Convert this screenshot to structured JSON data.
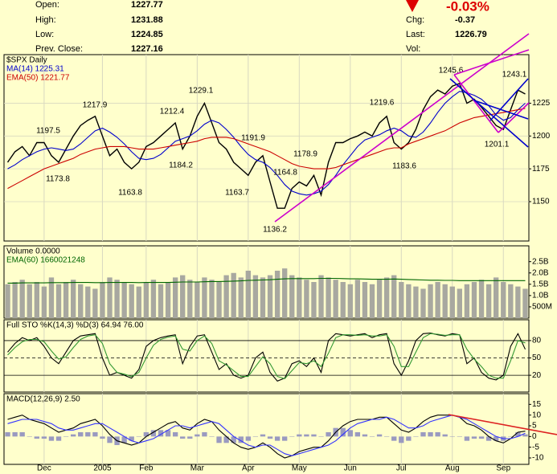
{
  "header": {
    "open_label": "Open:",
    "open": "1227.77",
    "high_label": "High:",
    "high": "1231.88",
    "low_label": "Low:",
    "low": "1224.85",
    "prev_close_label": "Prev. Close:",
    "prev_close": "1227.16",
    "change_pct": "-0.03%",
    "chg_label": "Chg:",
    "chg": "-0.37",
    "last_label": "Last:",
    "last": "1226.79",
    "vol_label": "Vol:"
  },
  "chart_data": [
    {
      "type": "line",
      "title": "$SPX Daily",
      "ylim": [
        1120,
        1262
      ],
      "yticks": [
        1150,
        1175,
        1200,
        1225
      ],
      "grid": true,
      "series": [
        {
          "color": "#000000",
          "values": [
            1180,
            1188,
            1192,
            1185,
            1195,
            1195,
            1185,
            1180,
            1190,
            1200,
            1208,
            1212,
            1215,
            1200,
            1185,
            1190,
            1180,
            1175,
            1180,
            1192,
            1195,
            1200,
            1205,
            1210,
            1190,
            1200,
            1215,
            1225,
            1210,
            1195,
            1190,
            1180,
            1175,
            1170,
            1180,
            1185,
            1165,
            1145,
            1145,
            1160,
            1165,
            1162,
            1170,
            1155,
            1180,
            1195,
            1195,
            1198,
            1200,
            1203,
            1200,
            1210,
            1215,
            1195,
            1190,
            1195,
            1205,
            1220,
            1230,
            1235,
            1232,
            1238,
            1240,
            1225,
            1228,
            1222,
            1215,
            1208,
            1205,
            1220,
            1235,
            1232
          ]
        },
        {
          "name": "MA(14) 1225.31",
          "color": "#0000cc",
          "values": [
            1175,
            1178,
            1182,
            1185,
            1188,
            1190,
            1191,
            1190,
            1189,
            1190,
            1194,
            1199,
            1204,
            1206,
            1203,
            1199,
            1194,
            1188,
            1183,
            1182,
            1183,
            1186,
            1191,
            1196,
            1198,
            1200,
            1204,
            1209,
            1212,
            1210,
            1205,
            1199,
            1192,
            1186,
            1182,
            1180,
            1176,
            1170,
            1163,
            1158,
            1156,
            1155,
            1156,
            1158,
            1163,
            1170,
            1178,
            1185,
            1192,
            1197,
            1199,
            1201,
            1204,
            1206,
            1204,
            1200,
            1199,
            1203,
            1210,
            1218,
            1225,
            1230,
            1234,
            1233,
            1231,
            1228,
            1223,
            1216,
            1212,
            1214,
            1220,
            1225
          ]
        },
        {
          "name": "EMA(50) 1221.77",
          "color": "#cc0000",
          "values": [
            1160,
            1163,
            1166,
            1169,
            1172,
            1175,
            1177,
            1179,
            1181,
            1183,
            1186,
            1188,
            1190,
            1191,
            1192,
            1192,
            1192,
            1191,
            1190,
            1190,
            1190,
            1191,
            1192,
            1193,
            1194,
            1195,
            1196,
            1198,
            1199,
            1199,
            1199,
            1198,
            1196,
            1194,
            1192,
            1190,
            1188,
            1185,
            1182,
            1179,
            1177,
            1176,
            1175,
            1175,
            1175,
            1176,
            1178,
            1180,
            1182,
            1184,
            1186,
            1188,
            1190,
            1191,
            1191,
            1194,
            1196,
            1198,
            1200,
            1202,
            1204,
            1207,
            1210,
            1212,
            1214,
            1215,
            1216,
            1217,
            1218,
            1219,
            1220,
            1221
          ]
        }
      ],
      "annotations": [
        "1245.6",
        "1243.1",
        "1217.9",
        "1229.1",
        "1212.4",
        "1197.5",
        "1173.8",
        "1163.8",
        "1184.2",
        "1191.9",
        "1178.9",
        "1164.8",
        "1163.7",
        "1136.2",
        "1219.6",
        "1183.6",
        "1201.1"
      ]
    },
    {
      "type": "bar",
      "title": "Volume 0.0000",
      "ylim": [
        0,
        3200000000.0
      ],
      "yticks": [
        {
          "value": 2500000000.0,
          "label": "2.5B"
        },
        {
          "value": 2000000000.0,
          "label": "2.0B"
        },
        {
          "value": 1500000000.0,
          "label": "1.5B"
        },
        {
          "value": 1000000000.0,
          "label": "1.0B"
        },
        {
          "value": 500000000.0,
          "label": "500M"
        }
      ],
      "series": [
        {
          "color": "#a8a8a0",
          "values": [
            1500000000.0,
            1600000000.0,
            1700000000.0,
            1500000000.0,
            1600000000.0,
            1400000000.0,
            1800000000.0,
            1500000000.0,
            1600000000.0,
            1700000000.0,
            1500000000.0,
            1400000000.0,
            1300000000.0,
            1600000000.0,
            1800000000.0,
            1700000000.0,
            1600000000.0,
            1500000000.0,
            1400000000.0,
            1600000000.0,
            1700000000.0,
            1500000000.0,
            1600000000.0,
            1800000000.0,
            1900000000.0,
            1700000000.0,
            1600000000.0,
            1800000000.0,
            1700000000.0,
            1600000000.0,
            1900000000.0,
            2000000000.0,
            1800000000.0,
            2100000000.0,
            1900000000.0,
            1800000000.0,
            1900000000.0,
            2100000000.0,
            2200000000.0,
            1900000000.0,
            1800000000.0,
            1700000000.0,
            1600000000.0,
            1900000000.0,
            1800000000.0,
            1700000000.0,
            1600000000.0,
            1500000000.0,
            1700000000.0,
            1600000000.0,
            1500000000.0,
            1700000000.0,
            1800000000.0,
            1900000000.0,
            1600000000.0,
            1500000000.0,
            1400000000.0,
            1300000000.0,
            1500000000.0,
            1600000000.0,
            1500000000.0,
            1400000000.0,
            1300000000.0,
            1500000000.0,
            1600000000.0,
            1700000000.0,
            1500000000.0,
            1800000000.0,
            1600000000.0,
            1500000000.0,
            1400000000.0,
            1300000000.0
          ]
        },
        {
          "name": "EMA(60) 1660021248",
          "type": "line",
          "color": "#006600",
          "values": [
            1550000000.0,
            1550000000.0,
            1560000000.0,
            1560000000.0,
            1560000000.0,
            1560000000.0,
            1570000000.0,
            1570000000.0,
            1570000000.0,
            1580000000.0,
            1580000000.0,
            1580000000.0,
            1570000000.0,
            1570000000.0,
            1580000000.0,
            1580000000.0,
            1580000000.0,
            1580000000.0,
            1570000000.0,
            1580000000.0,
            1580000000.0,
            1580000000.0,
            1580000000.0,
            1590000000.0,
            1600000000.0,
            1600000000.0,
            1600000000.0,
            1610000000.0,
            1620000000.0,
            1620000000.0,
            1630000000.0,
            1640000000.0,
            1650000000.0,
            1670000000.0,
            1680000000.0,
            1690000000.0,
            1700000000.0,
            1720000000.0,
            1740000000.0,
            1750000000.0,
            1750000000.0,
            1750000000.0,
            1750000000.0,
            1760000000.0,
            1760000000.0,
            1760000000.0,
            1750000000.0,
            1740000000.0,
            1740000000.0,
            1730000000.0,
            1720000000.0,
            1720000000.0,
            1720000000.0,
            1730000000.0,
            1720000000.0,
            1710000000.0,
            1700000000.0,
            1690000000.0,
            1680000000.0,
            1680000000.0,
            1670000000.0,
            1670000000.0,
            1660000000.0,
            1660000000.0,
            1660000000.0,
            1660000000.0,
            1660000000.0,
            1660000000.0,
            1660000000.0,
            1660000000.0,
            1660000000.0,
            1660000000.0
          ]
        }
      ]
    },
    {
      "type": "line",
      "title": "Full STO %K(14,3) %D(3) 64.94 76.00",
      "ylim": [
        -9,
        116
      ],
      "yticks": [
        80,
        50,
        20
      ],
      "grid": true,
      "series": [
        {
          "color": "#000000",
          "values": [
            60,
            75,
            85,
            80,
            85,
            70,
            50,
            40,
            60,
            80,
            88,
            90,
            92,
            50,
            20,
            25,
            20,
            15,
            30,
            70,
            80,
            85,
            88,
            90,
            40,
            70,
            88,
            90,
            60,
            30,
            40,
            20,
            15,
            20,
            50,
            60,
            25,
            10,
            15,
            40,
            45,
            35,
            50,
            25,
            80,
            92,
            90,
            88,
            90,
            92,
            85,
            90,
            92,
            40,
            20,
            45,
            80,
            92,
            93,
            90,
            88,
            92,
            90,
            40,
            50,
            25,
            15,
            12,
            20,
            70,
            92,
            64.94
          ]
        },
        {
          "color": "#339933",
          "values": [
            55,
            68,
            78,
            82,
            82,
            78,
            62,
            48,
            52,
            68,
            82,
            88,
            90,
            75,
            40,
            25,
            22,
            18,
            25,
            50,
            72,
            82,
            86,
            88,
            65,
            62,
            80,
            88,
            75,
            45,
            38,
            28,
            18,
            18,
            35,
            52,
            40,
            18,
            14,
            28,
            42,
            40,
            45,
            35,
            58,
            85,
            90,
            90,
            89,
            90,
            88,
            88,
            90,
            70,
            35,
            35,
            60,
            85,
            92,
            91,
            89,
            90,
            90,
            65,
            48,
            35,
            20,
            15,
            15,
            45,
            80,
            76
          ]
        }
      ]
    },
    {
      "type": "line",
      "title": "MACD(12,26,9) 2.50",
      "ylim": [
        -13,
        20
      ],
      "yticks": [
        15,
        10,
        5,
        0,
        -5,
        -10
      ],
      "categories": [
        null,
        null,
        null,
        null,
        null,
        "Dec",
        null,
        null,
        null,
        null,
        null,
        null,
        null,
        "2005",
        null,
        null,
        null,
        null,
        null,
        "Feb",
        null,
        null,
        null,
        null,
        null,
        null,
        "Mar",
        null,
        null,
        null,
        null,
        null,
        null,
        "Apr",
        null,
        null,
        null,
        null,
        null,
        null,
        "May",
        null,
        null,
        null,
        null,
        null,
        null,
        "Jun",
        null,
        null,
        null,
        null,
        null,
        null,
        "Jul",
        null,
        null,
        null,
        null,
        null,
        null,
        "Aug",
        null,
        null,
        null,
        null,
        null,
        null,
        "Sep",
        null,
        null,
        null
      ],
      "series": [
        {
          "type": "bar",
          "color": "#9a9ac0",
          "values": [
            2,
            2,
            2,
            0,
            -1,
            -1,
            -2,
            -2,
            0,
            1,
            2,
            2,
            2,
            -1,
            -3,
            -4,
            -3,
            -2,
            0,
            2,
            3,
            3,
            3,
            2,
            -1,
            -1,
            1,
            2,
            0,
            -3,
            -3,
            -3,
            -3,
            -2,
            0,
            1,
            -1,
            -2,
            -2,
            0,
            1,
            1,
            1,
            0,
            2,
            4,
            4,
            3,
            2,
            1,
            0,
            1,
            0,
            -2,
            -3,
            -2,
            0,
            2,
            2,
            2,
            1,
            0,
            0,
            -2,
            -1,
            -1,
            -2,
            -2,
            -2,
            0,
            2,
            1
          ]
        },
        {
          "color": "#000000",
          "values": [
            8,
            9,
            10,
            8,
            7,
            6,
            4,
            2,
            3,
            4,
            6,
            7,
            8,
            5,
            1,
            -2,
            -3,
            -4,
            -3,
            0,
            2,
            4,
            6,
            7,
            4,
            3,
            6,
            8,
            7,
            3,
            0,
            -3,
            -5,
            -6,
            -5,
            -3,
            -5,
            -8,
            -10,
            -9,
            -7,
            -6,
            -5,
            -5,
            -2,
            2,
            5,
            7,
            8,
            8,
            8,
            9,
            9,
            6,
            3,
            2,
            4,
            7,
            9,
            10,
            10,
            10,
            9,
            6,
            5,
            3,
            0,
            -2,
            -3,
            -1,
            2,
            2.5
          ]
        },
        {
          "color": "#3333ff",
          "values": [
            6,
            7,
            8,
            8,
            8,
            7,
            6,
            4,
            3,
            3,
            4,
            5,
            6,
            6,
            4,
            2,
            0,
            -2,
            -3,
            -2,
            -1,
            1,
            3,
            5,
            5,
            4,
            5,
            6,
            7,
            6,
            3,
            0,
            -2,
            -4,
            -5,
            -4,
            -4,
            -6,
            -8,
            -9,
            -8,
            -7,
            -6,
            -5,
            -4,
            -2,
            1,
            4,
            6,
            7,
            8,
            8,
            9,
            8,
            6,
            4,
            4,
            5,
            7,
            8,
            9,
            10,
            9,
            8,
            6,
            4,
            2,
            0,
            -1,
            -1,
            0,
            1.5
          ]
        }
      ]
    }
  ]
}
